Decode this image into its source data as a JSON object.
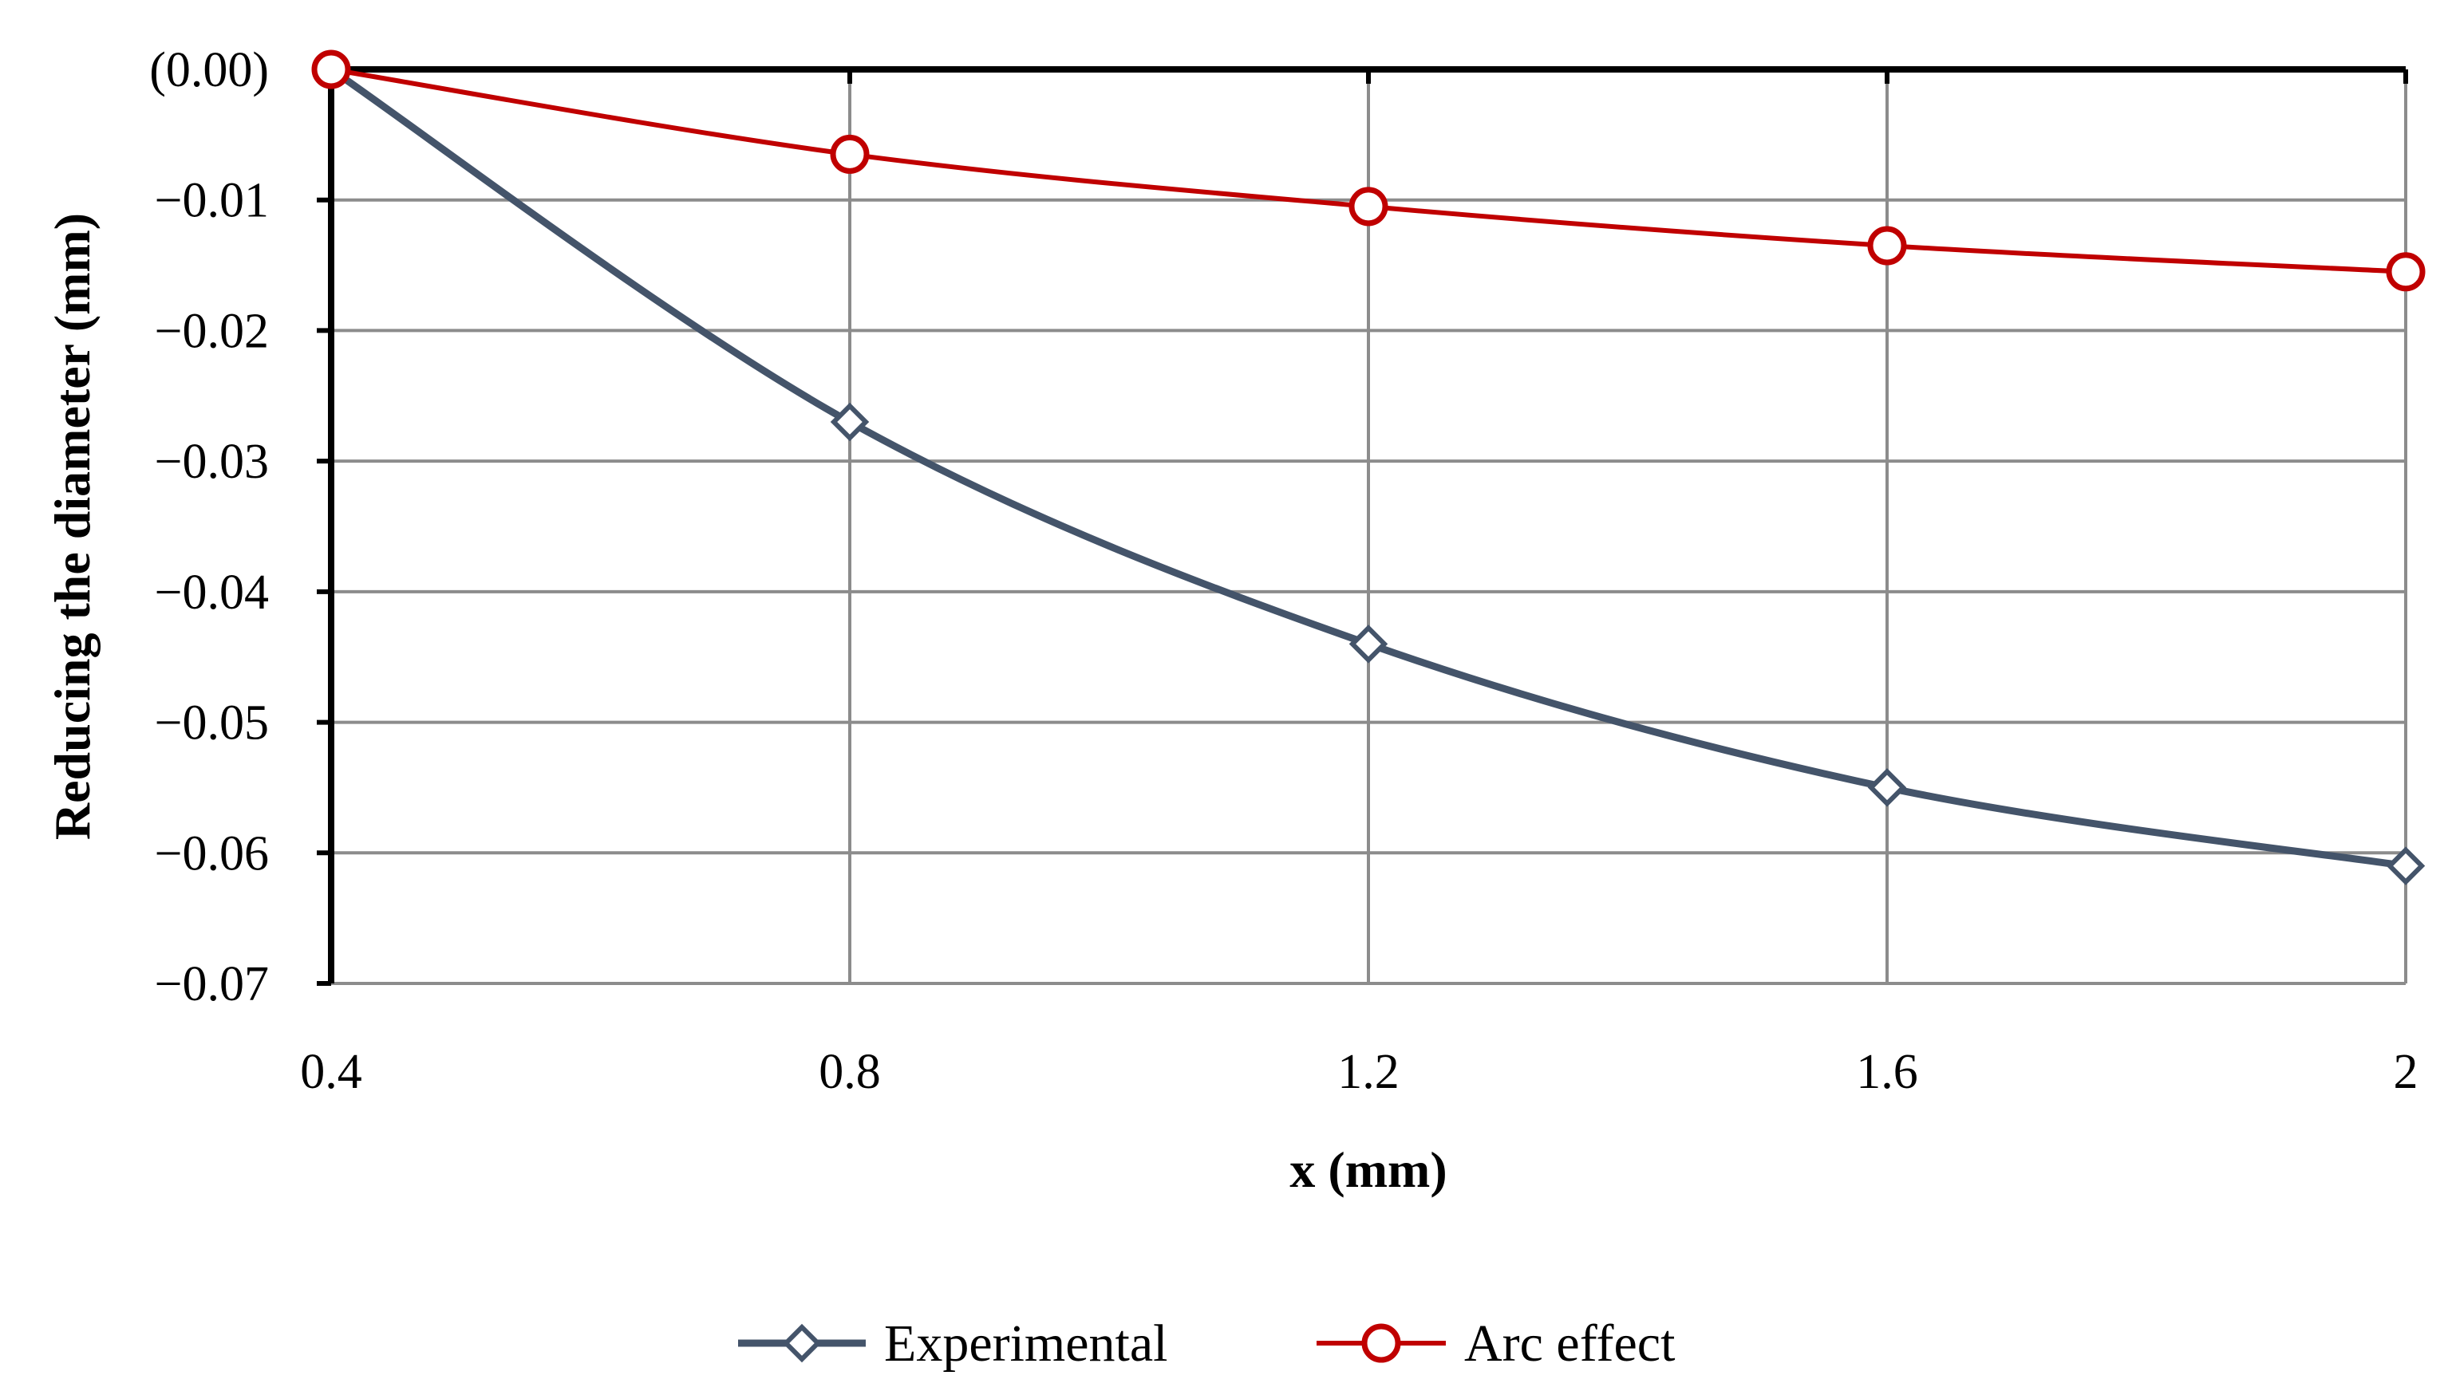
{
  "chart_data": {
    "type": "line",
    "title": "",
    "xlabel": "x (mm)",
    "ylabel": "Reducing the diameter (mm)",
    "x": [
      0.4,
      0.8,
      1.2,
      1.6,
      2.0
    ],
    "x_tick_labels": [
      "0.4",
      "0.8",
      "1.2",
      "1.6",
      "2"
    ],
    "xlim": [
      0.4,
      2.0
    ],
    "ylim": [
      -0.07,
      0.0
    ],
    "y_ticks": [
      0.0,
      -0.01,
      -0.02,
      -0.03,
      -0.04,
      -0.05,
      -0.06,
      -0.07
    ],
    "y_tick_labels": [
      "(0.00)",
      "−0.01",
      "−0.02",
      "−0.03",
      "−0.04",
      "−0.05",
      "−0.06",
      "−0.07"
    ],
    "grid": true,
    "legend_position": "bottom",
    "series": [
      {
        "name": "Experimental",
        "marker": "diamond",
        "color": "#44546a",
        "values": [
          0.0,
          -0.027,
          -0.044,
          -0.055,
          -0.061
        ]
      },
      {
        "name": "Arc effect",
        "marker": "circle",
        "color": "#c00000",
        "values": [
          0.0,
          -0.0065,
          -0.0105,
          -0.0135,
          -0.0155
        ]
      }
    ]
  }
}
